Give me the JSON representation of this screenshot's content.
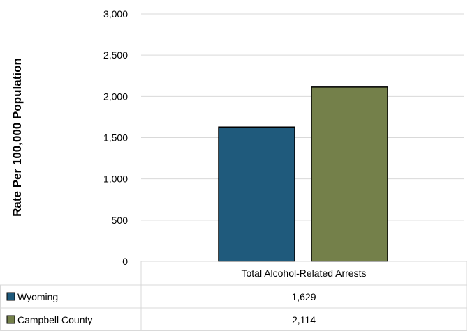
{
  "chart_data": {
    "type": "bar",
    "categories": [
      "Total Alcohol-Related Arrests"
    ],
    "series": [
      {
        "name": "Wyoming",
        "values": [
          1629
        ],
        "value_labels": [
          "1,629"
        ],
        "color": "#1f5a7c"
      },
      {
        "name": "Campbell County",
        "values": [
          2114
        ],
        "value_labels": [
          "2,114"
        ],
        "color": "#74804a"
      }
    ],
    "ylabel": "Rate Per 100,000 Population",
    "ylim": [
      0,
      3000
    ],
    "yticks": [
      0,
      500,
      1000,
      1500,
      2000,
      2500,
      3000
    ],
    "ytick_labels": [
      "0",
      "500",
      "1,000",
      "1,500",
      "2,000",
      "2,500",
      "3,000"
    ],
    "grid": true,
    "legend": "data-table",
    "colors": {
      "gridline": "#d9d9d9",
      "bar_edge": "#000000"
    }
  }
}
